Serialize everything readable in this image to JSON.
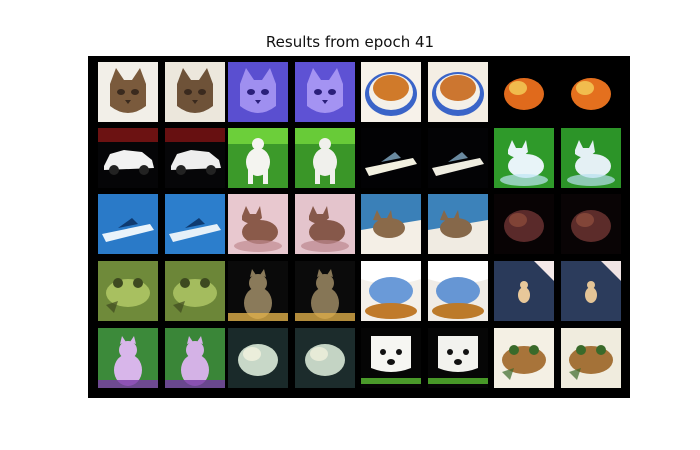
{
  "figure": {
    "title": "Results from epoch 41"
  },
  "grid": {
    "rows": 5,
    "pairs_per_row": 4,
    "tiles": [
      {
        "subject": "tabby-cat-face",
        "bg": "#f2efe8",
        "fg": "#7a5a3c",
        "accent": "#3a2a1e",
        "kind": "face"
      },
      {
        "subject": "tabby-cat-face",
        "bg": "#ece7dc",
        "fg": "#6e5238",
        "accent": "#3a2a1e",
        "kind": "face"
      },
      {
        "subject": "purple-cat-face",
        "bg": "#5a4fd0",
        "fg": "#9f8ff0",
        "accent": "#2a1f7a",
        "kind": "face"
      },
      {
        "subject": "purple-cat-face",
        "bg": "#5e52d4",
        "fg": "#a493f2",
        "accent": "#2a1f7a",
        "kind": "face"
      },
      {
        "subject": "orange-cat-bowl",
        "bg": "#f7f2ea",
        "fg": "#d07a2a",
        "accent": "#3a64c8",
        "kind": "bowl"
      },
      {
        "subject": "orange-cat-bowl",
        "bg": "#f4eee4",
        "fg": "#cc7630",
        "accent": "#3a64c8",
        "kind": "bowl"
      },
      {
        "subject": "orange-animal-dark",
        "bg": "#000000",
        "fg": "#e06a1c",
        "accent": "#f4d05a",
        "kind": "blob"
      },
      {
        "subject": "orange-animal-dark",
        "bg": "#000000",
        "fg": "#e4701e",
        "accent": "#f4d05a",
        "kind": "blob"
      },
      {
        "subject": "white-car",
        "bg": "#050507",
        "fg": "#f2f2f2",
        "accent": "#b01a1a",
        "kind": "car"
      },
      {
        "subject": "white-car",
        "bg": "#060608",
        "fg": "#eeeeee",
        "accent": "#a81818",
        "kind": "car"
      },
      {
        "subject": "white-dog-grass",
        "bg": "#3c9a2a",
        "fg": "#f4f4f0",
        "accent": "#6ccf3a",
        "kind": "dog"
      },
      {
        "subject": "white-dog-grass",
        "bg": "#3a9628",
        "fg": "#f0f0ec",
        "accent": "#68cb38",
        "kind": "dog"
      },
      {
        "subject": "boat-dark-water",
        "bg": "#020204",
        "fg": "#f2f0e0",
        "accent": "#6a8aa0",
        "kind": "boat"
      },
      {
        "subject": "boat-dark-water",
        "bg": "#030305",
        "fg": "#eeece0",
        "accent": "#6a8aa0",
        "kind": "boat"
      },
      {
        "subject": "white-cat-green",
        "bg": "#2f9a2a",
        "fg": "#e8f4f8",
        "accent": "#bde6f4",
        "kind": "cat"
      },
      {
        "subject": "white-cat-green",
        "bg": "#2c9428",
        "fg": "#e4f0f4",
        "accent": "#b6e0ee",
        "kind": "cat"
      },
      {
        "subject": "speedboat-blue",
        "bg": "#2a7ac8",
        "fg": "#eaf4fb",
        "accent": "#0e3a70",
        "kind": "boat"
      },
      {
        "subject": "speedboat-blue",
        "bg": "#2c7ecc",
        "fg": "#e6f0f8",
        "accent": "#0e3a70",
        "kind": "boat"
      },
      {
        "subject": "cat-pink-wall",
        "bg": "#e8c8cf",
        "fg": "#8a5a4a",
        "accent": "#c08a90",
        "kind": "cat"
      },
      {
        "subject": "cat-pink-wall",
        "bg": "#e4c4cc",
        "fg": "#86584a",
        "accent": "#bc888e",
        "kind": "cat"
      },
      {
        "subject": "cat-lying-blanket",
        "bg": "#3a80b8",
        "fg": "#f4efe6",
        "accent": "#8a6a4a",
        "kind": "lying"
      },
      {
        "subject": "cat-lying-blanket",
        "bg": "#3c82ba",
        "fg": "#f0ebe2",
        "accent": "#86684a",
        "kind": "lying"
      },
      {
        "subject": "dark-animal",
        "bg": "#080304",
        "fg": "#5a2a2a",
        "accent": "#8a4a3a",
        "kind": "blob"
      },
      {
        "subject": "dark-animal",
        "bg": "#090405",
        "fg": "#5c2c2a",
        "accent": "#8c4c3c",
        "kind": "blob"
      },
      {
        "subject": "frog-camouflage",
        "bg": "#6f8a3a",
        "fg": "#a8c060",
        "accent": "#3e4a20",
        "kind": "frog"
      },
      {
        "subject": "frog-camouflage",
        "bg": "#6c8638",
        "fg": "#a4bc5e",
        "accent": "#3e4a20",
        "kind": "frog"
      },
      {
        "subject": "cat-dark-scene",
        "bg": "#0a0a0a",
        "fg": "#8a7a5a",
        "accent": "#e0b04a",
        "kind": "sitting"
      },
      {
        "subject": "cat-dark-scene",
        "bg": "#0b0b0b",
        "fg": "#867656",
        "accent": "#dcac48",
        "kind": "sitting"
      },
      {
        "subject": "white-blue-feathers",
        "bg": "#f4f0ea",
        "fg": "#6a9ad8",
        "accent": "#c07a2a",
        "kind": "bird"
      },
      {
        "subject": "white-blue-feathers",
        "bg": "#f0ece6",
        "fg": "#6696d4",
        "accent": "#bc7a2a",
        "kind": "bird"
      },
      {
        "subject": "bird-on-road",
        "bg": "#2a3a5a",
        "fg": "#e8c89a",
        "accent": "#f4e8e8",
        "kind": "road"
      },
      {
        "subject": "bird-on-road",
        "bg": "#2c3c5c",
        "fg": "#e4c496",
        "accent": "#f0e4e4",
        "kind": "road"
      },
      {
        "subject": "purple-animal-grass",
        "bg": "#3c8a3a",
        "fg": "#d8b6ea",
        "accent": "#7a3aa8",
        "kind": "sitting"
      },
      {
        "subject": "purple-animal-grass",
        "bg": "#3a8638",
        "fg": "#d4b2e6",
        "accent": "#7638a4",
        "kind": "sitting"
      },
      {
        "subject": "animals-dark-light",
        "bg": "#1a2a2a",
        "fg": "#c8d8c8",
        "accent": "#f4f4e0",
        "kind": "blob"
      },
      {
        "subject": "animals-dark-light",
        "bg": "#1c2c2c",
        "fg": "#c4d4c4",
        "accent": "#f0f0dc",
        "kind": "blob"
      },
      {
        "subject": "white-dog-face",
        "bg": "#050505",
        "fg": "#f6f6f2",
        "accent": "#4a9a2a",
        "kind": "dogface"
      },
      {
        "subject": "white-dog-face",
        "bg": "#060606",
        "fg": "#f2f2ee",
        "accent": "#489828",
        "kind": "dogface"
      },
      {
        "subject": "brown-frog-white",
        "bg": "#f4f0e4",
        "fg": "#a8743a",
        "accent": "#3a6a2a",
        "kind": "frog"
      },
      {
        "subject": "brown-frog-white",
        "bg": "#f0ecde",
        "fg": "#a47238",
        "accent": "#3a6a2a",
        "kind": "frog"
      }
    ]
  }
}
